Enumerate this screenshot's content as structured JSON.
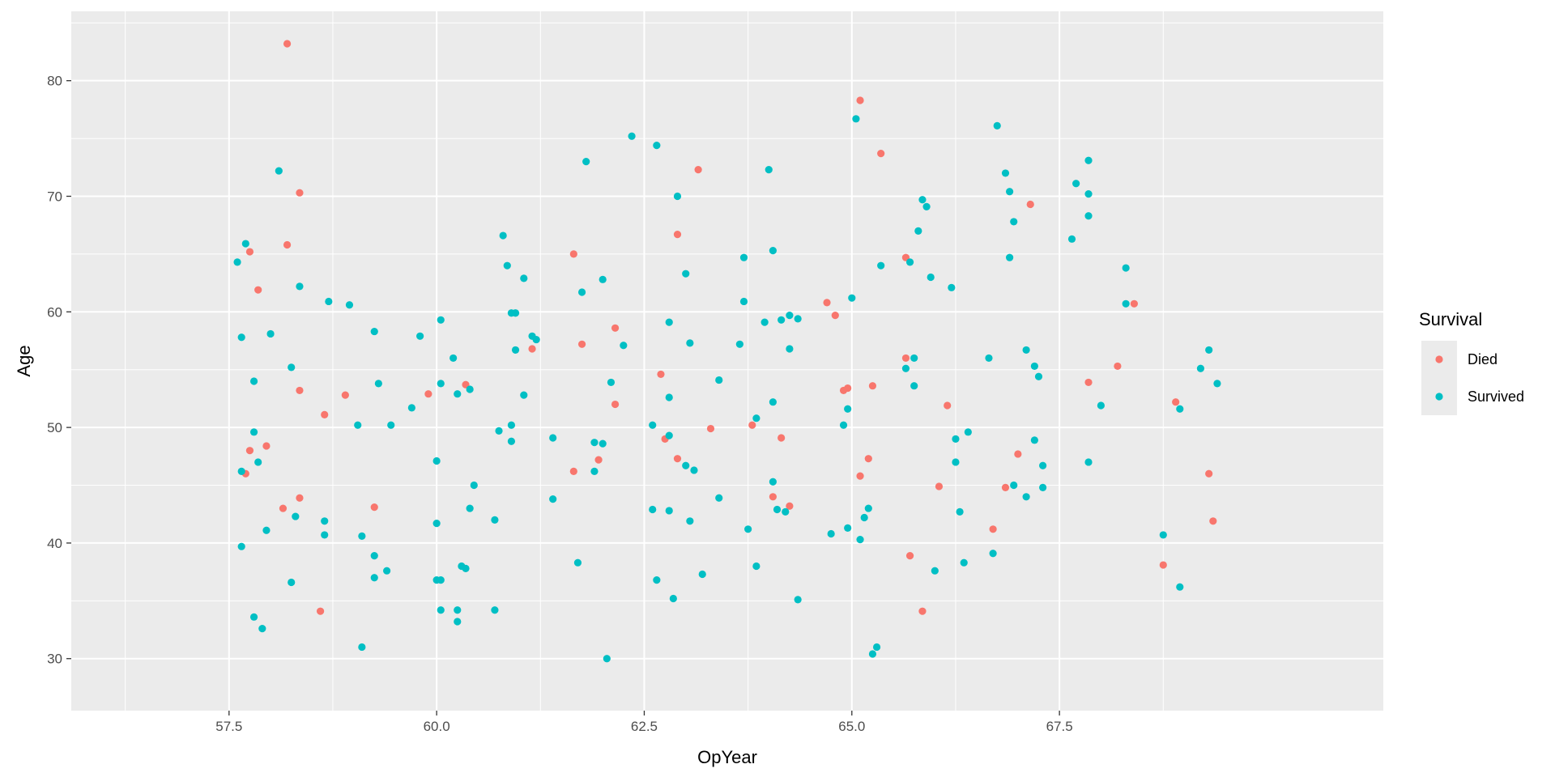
{
  "chart_data": {
    "type": "scatter",
    "xlabel": "OpYear",
    "ylabel": "Age",
    "xlim": [
      55.6,
      71.4
    ],
    "ylim": [
      25.5,
      86.0
    ],
    "x_ticks": [
      57.5,
      60.0,
      62.5,
      65.0,
      67.5
    ],
    "x_tick_labels": [
      "57.5",
      "60.0",
      "62.5",
      "65.0",
      "67.5"
    ],
    "y_ticks": [
      30,
      40,
      50,
      60,
      70,
      80
    ],
    "y_tick_labels": [
      "30",
      "40",
      "50",
      "60",
      "70",
      "80"
    ],
    "grid": true,
    "legend": {
      "title": "Survival",
      "position": "right"
    },
    "series": [
      {
        "name": "Died",
        "color": "#F8766D",
        "points": [
          [
            58.2,
            83.2
          ],
          [
            58.35,
            70.3
          ],
          [
            58.2,
            65.8
          ],
          [
            57.75,
            65.2
          ],
          [
            57.85,
            61.9
          ],
          [
            58.35,
            53.2
          ],
          [
            57.95,
            48.4
          ],
          [
            57.75,
            48.0
          ],
          [
            57.7,
            46.0
          ],
          [
            58.15,
            43.0
          ],
          [
            58.35,
            43.9
          ],
          [
            58.65,
            51.1
          ],
          [
            58.9,
            52.8
          ],
          [
            58.6,
            34.1
          ],
          [
            59.25,
            43.1
          ],
          [
            59.9,
            52.9
          ],
          [
            60.35,
            53.7
          ],
          [
            61.15,
            56.8
          ],
          [
            61.65,
            65.0
          ],
          [
            61.75,
            57.2
          ],
          [
            61.65,
            46.2
          ],
          [
            62.15,
            58.6
          ],
          [
            61.95,
            47.2
          ],
          [
            62.15,
            52.0
          ],
          [
            62.7,
            54.6
          ],
          [
            62.75,
            49.0
          ],
          [
            62.9,
            66.7
          ],
          [
            62.9,
            47.3
          ],
          [
            63.15,
            72.3
          ],
          [
            63.3,
            49.9
          ],
          [
            63.8,
            50.2
          ],
          [
            64.05,
            44.0
          ],
          [
            64.15,
            49.1
          ],
          [
            64.25,
            43.2
          ],
          [
            64.7,
            60.8
          ],
          [
            64.8,
            59.7
          ],
          [
            64.9,
            53.2
          ],
          [
            64.95,
            53.4
          ],
          [
            65.1,
            78.3
          ],
          [
            65.35,
            73.7
          ],
          [
            65.25,
            53.6
          ],
          [
            65.2,
            47.3
          ],
          [
            65.1,
            45.8
          ],
          [
            65.65,
            64.7
          ],
          [
            65.65,
            56.0
          ],
          [
            65.7,
            38.9
          ],
          [
            65.85,
            34.1
          ],
          [
            66.05,
            44.9
          ],
          [
            66.15,
            51.9
          ],
          [
            66.7,
            41.2
          ],
          [
            66.85,
            44.8
          ],
          [
            67.0,
            47.7
          ],
          [
            67.15,
            69.3
          ],
          [
            67.85,
            53.9
          ],
          [
            68.2,
            55.3
          ],
          [
            68.4,
            60.7
          ],
          [
            68.75,
            38.1
          ],
          [
            68.9,
            52.2
          ],
          [
            69.3,
            46.0
          ],
          [
            69.35,
            41.9
          ]
        ]
      },
      {
        "name": "Survived",
        "color": "#00BFC4",
        "points": [
          [
            57.6,
            64.3
          ],
          [
            57.7,
            65.9
          ],
          [
            57.65,
            57.8
          ],
          [
            57.8,
            54.0
          ],
          [
            57.8,
            49.6
          ],
          [
            57.85,
            47.0
          ],
          [
            57.65,
            46.2
          ],
          [
            57.65,
            39.7
          ],
          [
            57.8,
            33.6
          ],
          [
            57.9,
            32.6
          ],
          [
            57.95,
            41.1
          ],
          [
            58.0,
            58.1
          ],
          [
            58.1,
            72.2
          ],
          [
            58.25,
            55.2
          ],
          [
            58.35,
            62.2
          ],
          [
            58.3,
            42.3
          ],
          [
            58.25,
            36.6
          ],
          [
            58.65,
            40.7
          ],
          [
            58.65,
            41.9
          ],
          [
            58.7,
            60.9
          ],
          [
            58.95,
            60.6
          ],
          [
            59.05,
            50.2
          ],
          [
            59.1,
            40.6
          ],
          [
            59.1,
            31.0
          ],
          [
            59.25,
            58.3
          ],
          [
            59.25,
            38.9
          ],
          [
            59.25,
            37.0
          ],
          [
            59.3,
            53.8
          ],
          [
            59.4,
            37.6
          ],
          [
            59.45,
            50.2
          ],
          [
            59.7,
            51.7
          ],
          [
            59.8,
            57.9
          ],
          [
            60.0,
            41.7
          ],
          [
            60.0,
            47.1
          ],
          [
            60.05,
            59.3
          ],
          [
            60.05,
            53.8
          ],
          [
            60.0,
            36.8
          ],
          [
            60.05,
            36.8
          ],
          [
            60.05,
            34.2
          ],
          [
            60.2,
            56.0
          ],
          [
            60.25,
            52.9
          ],
          [
            60.25,
            34.2
          ],
          [
            60.25,
            33.2
          ],
          [
            60.3,
            38.0
          ],
          [
            60.35,
            37.8
          ],
          [
            60.4,
            53.3
          ],
          [
            60.4,
            43.0
          ],
          [
            60.45,
            45.0
          ],
          [
            60.7,
            42.0
          ],
          [
            60.7,
            34.2
          ],
          [
            60.75,
            49.7
          ],
          [
            60.8,
            66.6
          ],
          [
            60.85,
            64.0
          ],
          [
            60.9,
            50.2
          ],
          [
            60.9,
            48.8
          ],
          [
            60.9,
            59.9
          ],
          [
            60.95,
            59.9
          ],
          [
            60.95,
            56.7
          ],
          [
            61.05,
            52.8
          ],
          [
            61.05,
            62.9
          ],
          [
            61.15,
            57.9
          ],
          [
            61.2,
            57.6
          ],
          [
            61.4,
            49.1
          ],
          [
            61.4,
            43.8
          ],
          [
            61.7,
            38.3
          ],
          [
            61.75,
            61.7
          ],
          [
            61.8,
            73.0
          ],
          [
            61.9,
            48.7
          ],
          [
            61.9,
            46.2
          ],
          [
            62.0,
            62.8
          ],
          [
            62.0,
            48.6
          ],
          [
            62.05,
            30.0
          ],
          [
            62.1,
            53.9
          ],
          [
            62.25,
            57.1
          ],
          [
            62.35,
            75.2
          ],
          [
            62.6,
            50.2
          ],
          [
            62.6,
            42.9
          ],
          [
            62.65,
            74.4
          ],
          [
            62.65,
            36.8
          ],
          [
            62.8,
            59.1
          ],
          [
            62.8,
            52.6
          ],
          [
            62.8,
            49.3
          ],
          [
            62.8,
            42.8
          ],
          [
            62.85,
            35.2
          ],
          [
            62.9,
            70.0
          ],
          [
            63.0,
            63.3
          ],
          [
            63.0,
            46.7
          ],
          [
            63.05,
            57.3
          ],
          [
            63.1,
            46.3
          ],
          [
            63.05,
            41.9
          ],
          [
            63.2,
            37.3
          ],
          [
            63.4,
            54.1
          ],
          [
            63.4,
            43.9
          ],
          [
            63.65,
            57.2
          ],
          [
            63.7,
            64.7
          ],
          [
            63.7,
            60.9
          ],
          [
            63.75,
            41.2
          ],
          [
            63.85,
            50.8
          ],
          [
            63.85,
            38.0
          ],
          [
            63.95,
            59.1
          ],
          [
            64.0,
            72.3
          ],
          [
            64.05,
            65.3
          ],
          [
            64.05,
            52.2
          ],
          [
            64.05,
            45.3
          ],
          [
            64.1,
            42.9
          ],
          [
            64.15,
            59.3
          ],
          [
            64.2,
            42.7
          ],
          [
            64.25,
            59.7
          ],
          [
            64.25,
            56.8
          ],
          [
            64.35,
            59.4
          ],
          [
            64.35,
            35.1
          ],
          [
            64.75,
            40.8
          ],
          [
            64.9,
            50.2
          ],
          [
            64.95,
            51.6
          ],
          [
            64.95,
            41.3
          ],
          [
            65.0,
            61.2
          ],
          [
            65.05,
            76.7
          ],
          [
            65.1,
            40.3
          ],
          [
            65.15,
            42.2
          ],
          [
            65.2,
            43.0
          ],
          [
            65.25,
            30.4
          ],
          [
            65.3,
            31.0
          ],
          [
            65.35,
            64.0
          ],
          [
            65.65,
            55.1
          ],
          [
            65.7,
            64.3
          ],
          [
            65.75,
            56.0
          ],
          [
            65.75,
            53.6
          ],
          [
            65.8,
            67.0
          ],
          [
            65.85,
            69.7
          ],
          [
            65.9,
            69.1
          ],
          [
            65.95,
            63.0
          ],
          [
            66.0,
            37.6
          ],
          [
            66.2,
            62.1
          ],
          [
            66.25,
            49.0
          ],
          [
            66.25,
            47.0
          ],
          [
            66.3,
            42.7
          ],
          [
            66.35,
            38.3
          ],
          [
            66.4,
            49.6
          ],
          [
            66.65,
            56.0
          ],
          [
            66.7,
            39.1
          ],
          [
            66.75,
            76.1
          ],
          [
            66.85,
            72.0
          ],
          [
            66.9,
            70.4
          ],
          [
            66.9,
            64.7
          ],
          [
            66.95,
            67.8
          ],
          [
            66.95,
            45.0
          ],
          [
            67.1,
            56.7
          ],
          [
            67.1,
            44.0
          ],
          [
            67.2,
            55.3
          ],
          [
            67.2,
            48.9
          ],
          [
            67.25,
            54.4
          ],
          [
            67.3,
            46.7
          ],
          [
            67.3,
            44.8
          ],
          [
            67.65,
            66.3
          ],
          [
            67.7,
            71.1
          ],
          [
            67.85,
            73.1
          ],
          [
            67.85,
            70.2
          ],
          [
            67.85,
            68.3
          ],
          [
            67.85,
            47.0
          ],
          [
            68.0,
            51.9
          ],
          [
            68.3,
            63.8
          ],
          [
            68.3,
            60.7
          ],
          [
            68.75,
            40.7
          ],
          [
            68.95,
            51.6
          ],
          [
            68.95,
            36.2
          ],
          [
            69.2,
            55.1
          ],
          [
            69.3,
            56.7
          ],
          [
            69.4,
            53.8
          ]
        ]
      }
    ]
  }
}
